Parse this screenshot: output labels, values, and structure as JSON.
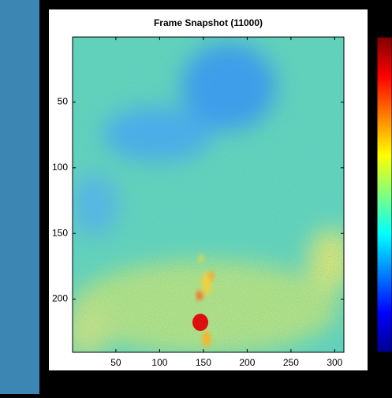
{
  "chart_data": {
    "type": "image",
    "title": "Frame Snapshot (11000)",
    "xlim": [
      0.5,
      310.5
    ],
    "ylim": [
      0.5,
      240.5
    ],
    "y_reversed": true,
    "xticks": [
      50,
      100,
      150,
      200,
      250,
      300
    ],
    "yticks": [
      50,
      100,
      150,
      200
    ],
    "colormap": "jet"
  }
}
